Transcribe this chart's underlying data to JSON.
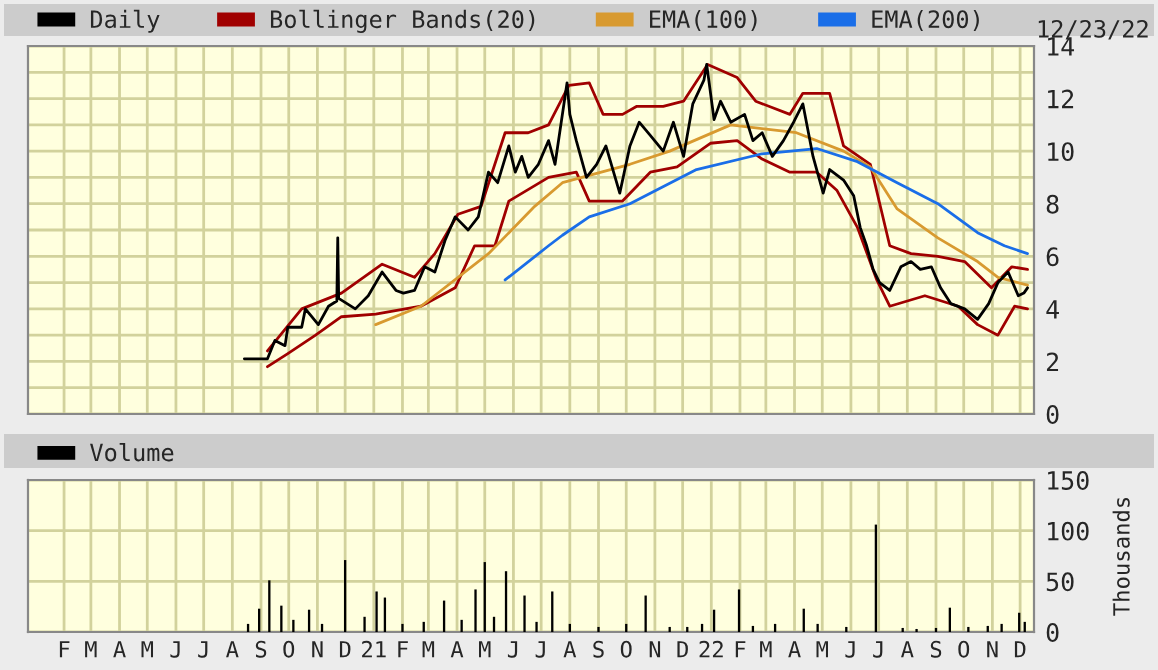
{
  "chart_data": [
    {
      "type": "line",
      "legend": "top",
      "grid": true,
      "tick_labels": "y",
      "annotations": [
        "12/23/22"
      ],
      "xlim": [
        "2020-01-07",
        "2022-12-30"
      ],
      "xticks": [
        {
          "value": "2020-02-15",
          "label": null
        },
        {
          "value": "2020-03-15",
          "label": null
        },
        {
          "value": "2020-04-15",
          "label": null
        },
        {
          "value": "2020-05-15",
          "label": null
        },
        {
          "value": "2020-06-15",
          "label": null
        },
        {
          "value": "2020-07-15",
          "label": null
        },
        {
          "value": "2020-08-15",
          "label": null
        },
        {
          "value": "2020-09-15",
          "label": null
        },
        {
          "value": "2020-10-15",
          "label": null
        },
        {
          "value": "2020-11-15",
          "label": null
        },
        {
          "value": "2020-12-15",
          "label": null
        },
        {
          "value": "2021-01-15",
          "label": null
        },
        {
          "value": "2021-02-15",
          "label": null
        },
        {
          "value": "2021-03-15",
          "label": null
        },
        {
          "value": "2021-04-15",
          "label": null
        },
        {
          "value": "2021-05-15",
          "label": null
        },
        {
          "value": "2021-06-15",
          "label": null
        },
        {
          "value": "2021-07-15",
          "label": null
        },
        {
          "value": "2021-08-15",
          "label": null
        },
        {
          "value": "2021-09-15",
          "label": null
        },
        {
          "value": "2021-10-15",
          "label": null
        },
        {
          "value": "2021-11-15",
          "label": null
        },
        {
          "value": "2021-12-15",
          "label": null
        },
        {
          "value": "2022-01-15",
          "label": null
        },
        {
          "value": "2022-02-15",
          "label": null
        },
        {
          "value": "2022-03-15",
          "label": null
        },
        {
          "value": "2022-04-15",
          "label": null
        },
        {
          "value": "2022-05-15",
          "label": null
        },
        {
          "value": "2022-06-15",
          "label": null
        },
        {
          "value": "2022-07-15",
          "label": null
        },
        {
          "value": "2022-08-15",
          "label": null
        },
        {
          "value": "2022-09-15",
          "label": null
        },
        {
          "value": "2022-10-15",
          "label": null
        },
        {
          "value": "2022-11-15",
          "label": null
        },
        {
          "value": "2022-12-15",
          "label": null
        }
      ],
      "ylim": [
        0,
        14
      ],
      "yticks": [
        0,
        {
          "value": 1,
          "label": null
        },
        2,
        {
          "value": 3,
          "label": null
        },
        4,
        {
          "value": 5,
          "label": null
        },
        6,
        {
          "value": 7,
          "label": null
        },
        8,
        {
          "value": 9,
          "label": null
        },
        10,
        {
          "value": 11,
          "label": null
        },
        12,
        {
          "value": 13,
          "label": null
        },
        14
      ],
      "series": [
        {
          "name": "Daily",
          "color": "#000000",
          "x": [
            "2020-08-28",
            "2020-09-22",
            "2020-09-30",
            "2020-10-11",
            "2020-10-14",
            "2020-10-29",
            "2020-11-02",
            "2020-11-16",
            "2020-11-27",
            "2020-12-06",
            "2020-12-07",
            "2020-12-08",
            "2020-12-26",
            "2021-01-09",
            "2021-01-24",
            "2021-02-08",
            "2021-02-16",
            "2021-02-28",
            "2021-03-11",
            "2021-03-22",
            "2021-04-02",
            "2021-04-13",
            "2021-04-27",
            "2021-05-08",
            "2021-05-19",
            "2021-05-29",
            "2021-06-10",
            "2021-06-17",
            "2021-06-24",
            "2021-07-01",
            "2021-07-12",
            "2021-07-23",
            "2021-07-30",
            "2021-08-12",
            "2021-08-15",
            "2021-08-22",
            "2021-09-02",
            "2021-09-13",
            "2021-09-23",
            "2021-10-08",
            "2021-10-19",
            "2021-10-29",
            "2021-11-10",
            "2021-11-24",
            "2021-12-05",
            "2021-12-16",
            "2021-12-26",
            "2022-01-07",
            "2022-01-10",
            "2022-01-18",
            "2022-01-25",
            "2022-02-05",
            "2022-02-20",
            "2022-03-01",
            "2022-03-11",
            "2022-03-22",
            "2022-04-03",
            "2022-04-14",
            "2022-04-24",
            "2022-05-05",
            "2022-05-16",
            "2022-05-23",
            "2022-06-07",
            "2022-06-18",
            "2022-06-25",
            "2022-07-02",
            "2022-07-09",
            "2022-07-16",
            "2022-07-27",
            "2022-08-08",
            "2022-08-19",
            "2022-08-29",
            "2022-09-10",
            "2022-09-20",
            "2022-10-01",
            "2022-10-16",
            "2022-10-30",
            "2022-11-11",
            "2022-11-21",
            "2022-12-02",
            "2022-12-13",
            "2022-12-19",
            "2022-12-23"
          ],
          "values": [
            2.1,
            2.1,
            2.8,
            2.6,
            3.3,
            3.3,
            4.0,
            3.4,
            4.1,
            4.3,
            6.7,
            4.4,
            4.0,
            4.5,
            5.4,
            4.7,
            4.6,
            4.7,
            5.6,
            5.4,
            6.6,
            7.5,
            7.0,
            7.5,
            9.2,
            8.8,
            10.2,
            9.2,
            9.8,
            9.0,
            9.5,
            10.4,
            9.5,
            12.6,
            11.4,
            10.4,
            9.0,
            9.5,
            10.2,
            8.4,
            10.2,
            11.1,
            10.6,
            10.0,
            11.1,
            9.8,
            11.8,
            12.7,
            13.3,
            11.2,
            11.9,
            11.1,
            11.4,
            10.4,
            10.7,
            9.8,
            10.4,
            11.1,
            11.8,
            9.8,
            8.4,
            9.3,
            8.9,
            8.3,
            7.1,
            6.4,
            5.5,
            5.0,
            4.7,
            5.6,
            5.8,
            5.5,
            5.6,
            4.8,
            4.2,
            4.0,
            3.6,
            4.2,
            5.0,
            5.4,
            4.5,
            4.6,
            4.8
          ]
        },
        {
          "name": "Bollinger Bands(20)",
          "color": "#a00000",
          "x": [
            "2020-09-22",
            "2020-10-29",
            "2020-12-11",
            "2021-01-24",
            "2021-02-28",
            "2021-03-22",
            "2021-04-16",
            "2021-05-11",
            "2021-06-06",
            "2021-07-01",
            "2021-07-23",
            "2021-08-14",
            "2021-09-05",
            "2021-09-20",
            "2021-10-11",
            "2021-10-26",
            "2021-11-24",
            "2021-12-16",
            "2022-01-11",
            "2022-02-12",
            "2022-03-04",
            "2022-04-10",
            "2022-04-24",
            "2022-05-23",
            "2022-06-07",
            "2022-07-06",
            "2022-07-27",
            "2022-08-19",
            "2022-09-17",
            "2022-10-16",
            "2022-11-14",
            "2022-12-06",
            "2022-12-23"
          ],
          "values": [
            2.4,
            4.0,
            4.6,
            5.7,
            5.2,
            6.1,
            7.6,
            7.9,
            10.7,
            10.7,
            11.0,
            12.5,
            12.6,
            11.4,
            11.4,
            11.7,
            11.7,
            11.9,
            13.3,
            12.8,
            11.9,
            11.4,
            12.2,
            12.2,
            10.2,
            9.5,
            6.4,
            6.1,
            6.0,
            5.8,
            4.8,
            5.6,
            5.5
          ]
        },
        {
          "color": "#a00000",
          "x": [
            "2020-09-22",
            "2020-10-14",
            "2020-11-13",
            "2020-12-11",
            "2021-01-17",
            "2021-03-07",
            "2021-04-13",
            "2021-05-04",
            "2021-05-26",
            "2021-06-10",
            "2021-07-23",
            "2021-08-22",
            "2021-09-05",
            "2021-10-11",
            "2021-11-10",
            "2021-12-09",
            "2022-01-14",
            "2022-02-12",
            "2022-03-11",
            "2022-04-10",
            "2022-05-09",
            "2022-05-31",
            "2022-06-22",
            "2022-07-13",
            "2022-07-27",
            "2022-09-03",
            "2022-10-09",
            "2022-10-30",
            "2022-11-21",
            "2022-12-09",
            "2022-12-23"
          ],
          "values": [
            1.8,
            2.3,
            3.0,
            3.7,
            3.8,
            4.1,
            4.8,
            6.4,
            6.4,
            8.1,
            9.0,
            9.2,
            8.1,
            8.1,
            9.2,
            9.4,
            10.3,
            10.4,
            9.7,
            9.2,
            9.2,
            8.5,
            7.1,
            5.1,
            4.1,
            4.5,
            4.1,
            3.4,
            3.0,
            4.1,
            4.0
          ]
        },
        {
          "name": "EMA(100)",
          "color": "#d89a30",
          "x": [
            "2021-01-17",
            "2021-03-07",
            "2021-05-19",
            "2021-07-08",
            "2021-08-07",
            "2021-10-19",
            "2021-12-01",
            "2022-02-05",
            "2022-04-17",
            "2022-06-07",
            "2022-07-06",
            "2022-08-04",
            "2022-09-17",
            "2022-10-30",
            "2022-11-21",
            "2022-12-23"
          ],
          "values": [
            3.4,
            4.1,
            6.1,
            7.9,
            8.8,
            9.5,
            10.0,
            11.0,
            10.7,
            10.0,
            9.4,
            7.8,
            6.7,
            5.8,
            5.2,
            4.9
          ]
        },
        {
          "name": "EMA(200)",
          "color": "#1a6ee8",
          "x": [
            "2021-06-06",
            "2021-07-23",
            "2021-08-07",
            "2021-09-05",
            "2021-10-19",
            "2021-12-30",
            "2022-03-11",
            "2022-05-09",
            "2022-06-22",
            "2022-08-04",
            "2022-09-17",
            "2022-10-30",
            "2022-11-28",
            "2022-12-23"
          ],
          "values": [
            5.1,
            6.4,
            6.8,
            7.5,
            8.0,
            9.3,
            9.9,
            10.1,
            9.6,
            8.8,
            8.0,
            6.9,
            6.4,
            6.1
          ]
        }
      ]
    },
    {
      "type": "bar",
      "legend": "top left",
      "grid": true,
      "ylabel": "Thousands",
      "xlim": [
        "2020-01-07",
        "2022-12-30"
      ],
      "xticks": [
        {
          "value": "2020-02-15",
          "label": "F"
        },
        {
          "value": "2020-03-15",
          "label": "M"
        },
        {
          "value": "2020-04-15",
          "label": "A"
        },
        {
          "value": "2020-05-15",
          "label": "M"
        },
        {
          "value": "2020-06-15",
          "label": "J"
        },
        {
          "value": "2020-07-15",
          "label": "J"
        },
        {
          "value": "2020-08-15",
          "label": "A"
        },
        {
          "value": "2020-09-15",
          "label": "S"
        },
        {
          "value": "2020-10-15",
          "label": "O"
        },
        {
          "value": "2020-11-15",
          "label": "N"
        },
        {
          "value": "2020-12-15",
          "label": "D"
        },
        {
          "value": "2021-01-15",
          "label": "21"
        },
        {
          "value": "2021-02-15",
          "label": "F"
        },
        {
          "value": "2021-03-15",
          "label": "M"
        },
        {
          "value": "2021-04-15",
          "label": "A"
        },
        {
          "value": "2021-05-15",
          "label": "M"
        },
        {
          "value": "2021-06-15",
          "label": "J"
        },
        {
          "value": "2021-07-15",
          "label": "J"
        },
        {
          "value": "2021-08-15",
          "label": "A"
        },
        {
          "value": "2021-09-15",
          "label": "S"
        },
        {
          "value": "2021-10-15",
          "label": "O"
        },
        {
          "value": "2021-11-15",
          "label": "N"
        },
        {
          "value": "2021-12-15",
          "label": "D"
        },
        {
          "value": "2022-01-15",
          "label": "22"
        },
        {
          "value": "2022-02-15",
          "label": "F"
        },
        {
          "value": "2022-03-15",
          "label": "M"
        },
        {
          "value": "2022-04-15",
          "label": "A"
        },
        {
          "value": "2022-05-15",
          "label": "M"
        },
        {
          "value": "2022-06-15",
          "label": "J"
        },
        {
          "value": "2022-07-15",
          "label": "J"
        },
        {
          "value": "2022-08-15",
          "label": "A"
        },
        {
          "value": "2022-09-15",
          "label": "S"
        },
        {
          "value": "2022-10-15",
          "label": "O"
        },
        {
          "value": "2022-11-15",
          "label": "N"
        },
        {
          "value": "2022-12-15",
          "label": "D"
        }
      ],
      "ylim": [
        0,
        150
      ],
      "yticks": [
        0,
        50,
        100,
        150
      ],
      "series": [
        {
          "name": "Volume",
          "color": "#000000",
          "x": [
            "2020-09-01",
            "2020-09-13",
            "2020-09-24",
            "2020-10-07",
            "2020-10-20",
            "2020-11-06",
            "2020-11-20",
            "2020-12-15",
            "2021-01-05",
            "2021-01-18",
            "2021-01-27",
            "2021-02-15",
            "2021-03-10",
            "2021-04-01",
            "2021-04-20",
            "2021-05-05",
            "2021-05-15",
            "2021-05-25",
            "2021-06-07",
            "2021-06-27",
            "2021-07-10",
            "2021-07-27",
            "2021-08-15",
            "2021-09-15",
            "2021-10-15",
            "2021-11-05",
            "2021-12-01",
            "2021-12-20",
            "2022-01-05",
            "2022-01-18",
            "2022-02-14",
            "2022-03-01",
            "2022-03-25",
            "2022-04-25",
            "2022-05-10",
            "2022-06-10",
            "2022-07-12",
            "2022-08-10",
            "2022-08-25",
            "2022-09-15",
            "2022-09-30",
            "2022-10-20",
            "2022-11-10",
            "2022-11-25",
            "2022-12-14",
            "2022-12-20"
          ],
          "values": [
            8,
            23,
            51,
            26,
            12,
            22,
            8,
            71,
            15,
            40,
            34,
            8,
            10,
            31,
            12,
            42,
            69,
            15,
            60,
            36,
            10,
            40,
            8,
            5,
            8,
            36,
            5,
            5,
            8,
            22,
            42,
            6,
            8,
            23,
            8,
            5,
            106,
            4,
            3,
            4,
            24,
            5,
            6,
            8,
            19,
            10
          ]
        }
      ]
    }
  ]
}
